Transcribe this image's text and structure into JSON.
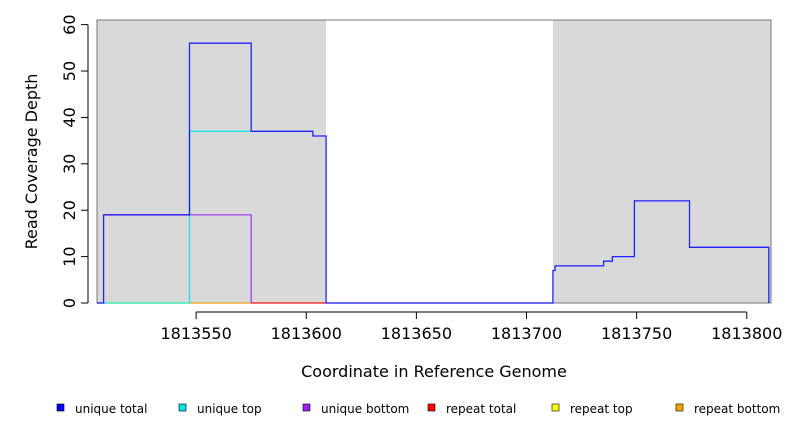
{
  "chart_data": {
    "type": "line",
    "title": "",
    "xlabel": "Coordinate in Reference Genome",
    "ylabel": "Read Coverage Depth",
    "xlim": [
      1813505,
      1813811
    ],
    "ylim": [
      0,
      61
    ],
    "x_ticks": [
      1813550,
      1813600,
      1813650,
      1813700,
      1813750,
      1813800
    ],
    "y_ticks": [
      0,
      10,
      20,
      30,
      40,
      50,
      60
    ],
    "shaded_regions": [
      [
        1813505,
        1813609
      ],
      [
        1813712,
        1813811
      ]
    ],
    "shade_color": "#d9d9d9",
    "grid": false,
    "legend_position": "bottom",
    "series": [
      {
        "name": "unique total",
        "color": "#0000ff",
        "points": [
          [
            1813505,
            0
          ],
          [
            1813508,
            0
          ],
          [
            1813508,
            19
          ],
          [
            1813547,
            19
          ],
          [
            1813547,
            56
          ],
          [
            1813575,
            56
          ],
          [
            1813575,
            37
          ],
          [
            1813603,
            37
          ],
          [
            1813603,
            36
          ],
          [
            1813609,
            36
          ],
          [
            1813609,
            0
          ],
          [
            1813712,
            0
          ],
          [
            1813712,
            7
          ],
          [
            1813713,
            7
          ],
          [
            1813713,
            8
          ],
          [
            1813735,
            8
          ],
          [
            1813735,
            9
          ],
          [
            1813739,
            9
          ],
          [
            1813739,
            10
          ],
          [
            1813749,
            10
          ],
          [
            1813749,
            22
          ],
          [
            1813774,
            22
          ],
          [
            1813774,
            12
          ],
          [
            1813810,
            12
          ],
          [
            1813810,
            0
          ]
        ]
      },
      {
        "name": "unique top",
        "color": "#00e5e5",
        "points": [
          [
            1813508,
            0
          ],
          [
            1813547,
            0
          ],
          [
            1813547,
            37
          ],
          [
            1813575,
            37
          ]
        ]
      },
      {
        "name": "unique bottom",
        "color": "#a020f0",
        "points": [
          [
            1813508,
            19
          ],
          [
            1813575,
            19
          ],
          [
            1813575,
            0
          ]
        ]
      },
      {
        "name": "repeat total",
        "color": "#ff0000",
        "points": [
          [
            1813575,
            0
          ],
          [
            1813609,
            0
          ]
        ]
      },
      {
        "name": "repeat top",
        "color": "#ffff00",
        "points": [
          [
            1813509,
            0
          ],
          [
            1813547,
            0
          ]
        ]
      },
      {
        "name": "repeat bottom",
        "color": "#ffa500",
        "points": [
          [
            1813547,
            0
          ],
          [
            1813575,
            0
          ]
        ]
      }
    ],
    "legend": [
      {
        "label": "unique total",
        "color": "#0000ff"
      },
      {
        "label": "unique top",
        "color": "#00e5e5"
      },
      {
        "label": "unique bottom",
        "color": "#a020f0"
      },
      {
        "label": "repeat total",
        "color": "#ff0000"
      },
      {
        "label": "repeat top",
        "color": "#ffff00"
      },
      {
        "label": "repeat bottom",
        "color": "#ffa500"
      }
    ]
  }
}
